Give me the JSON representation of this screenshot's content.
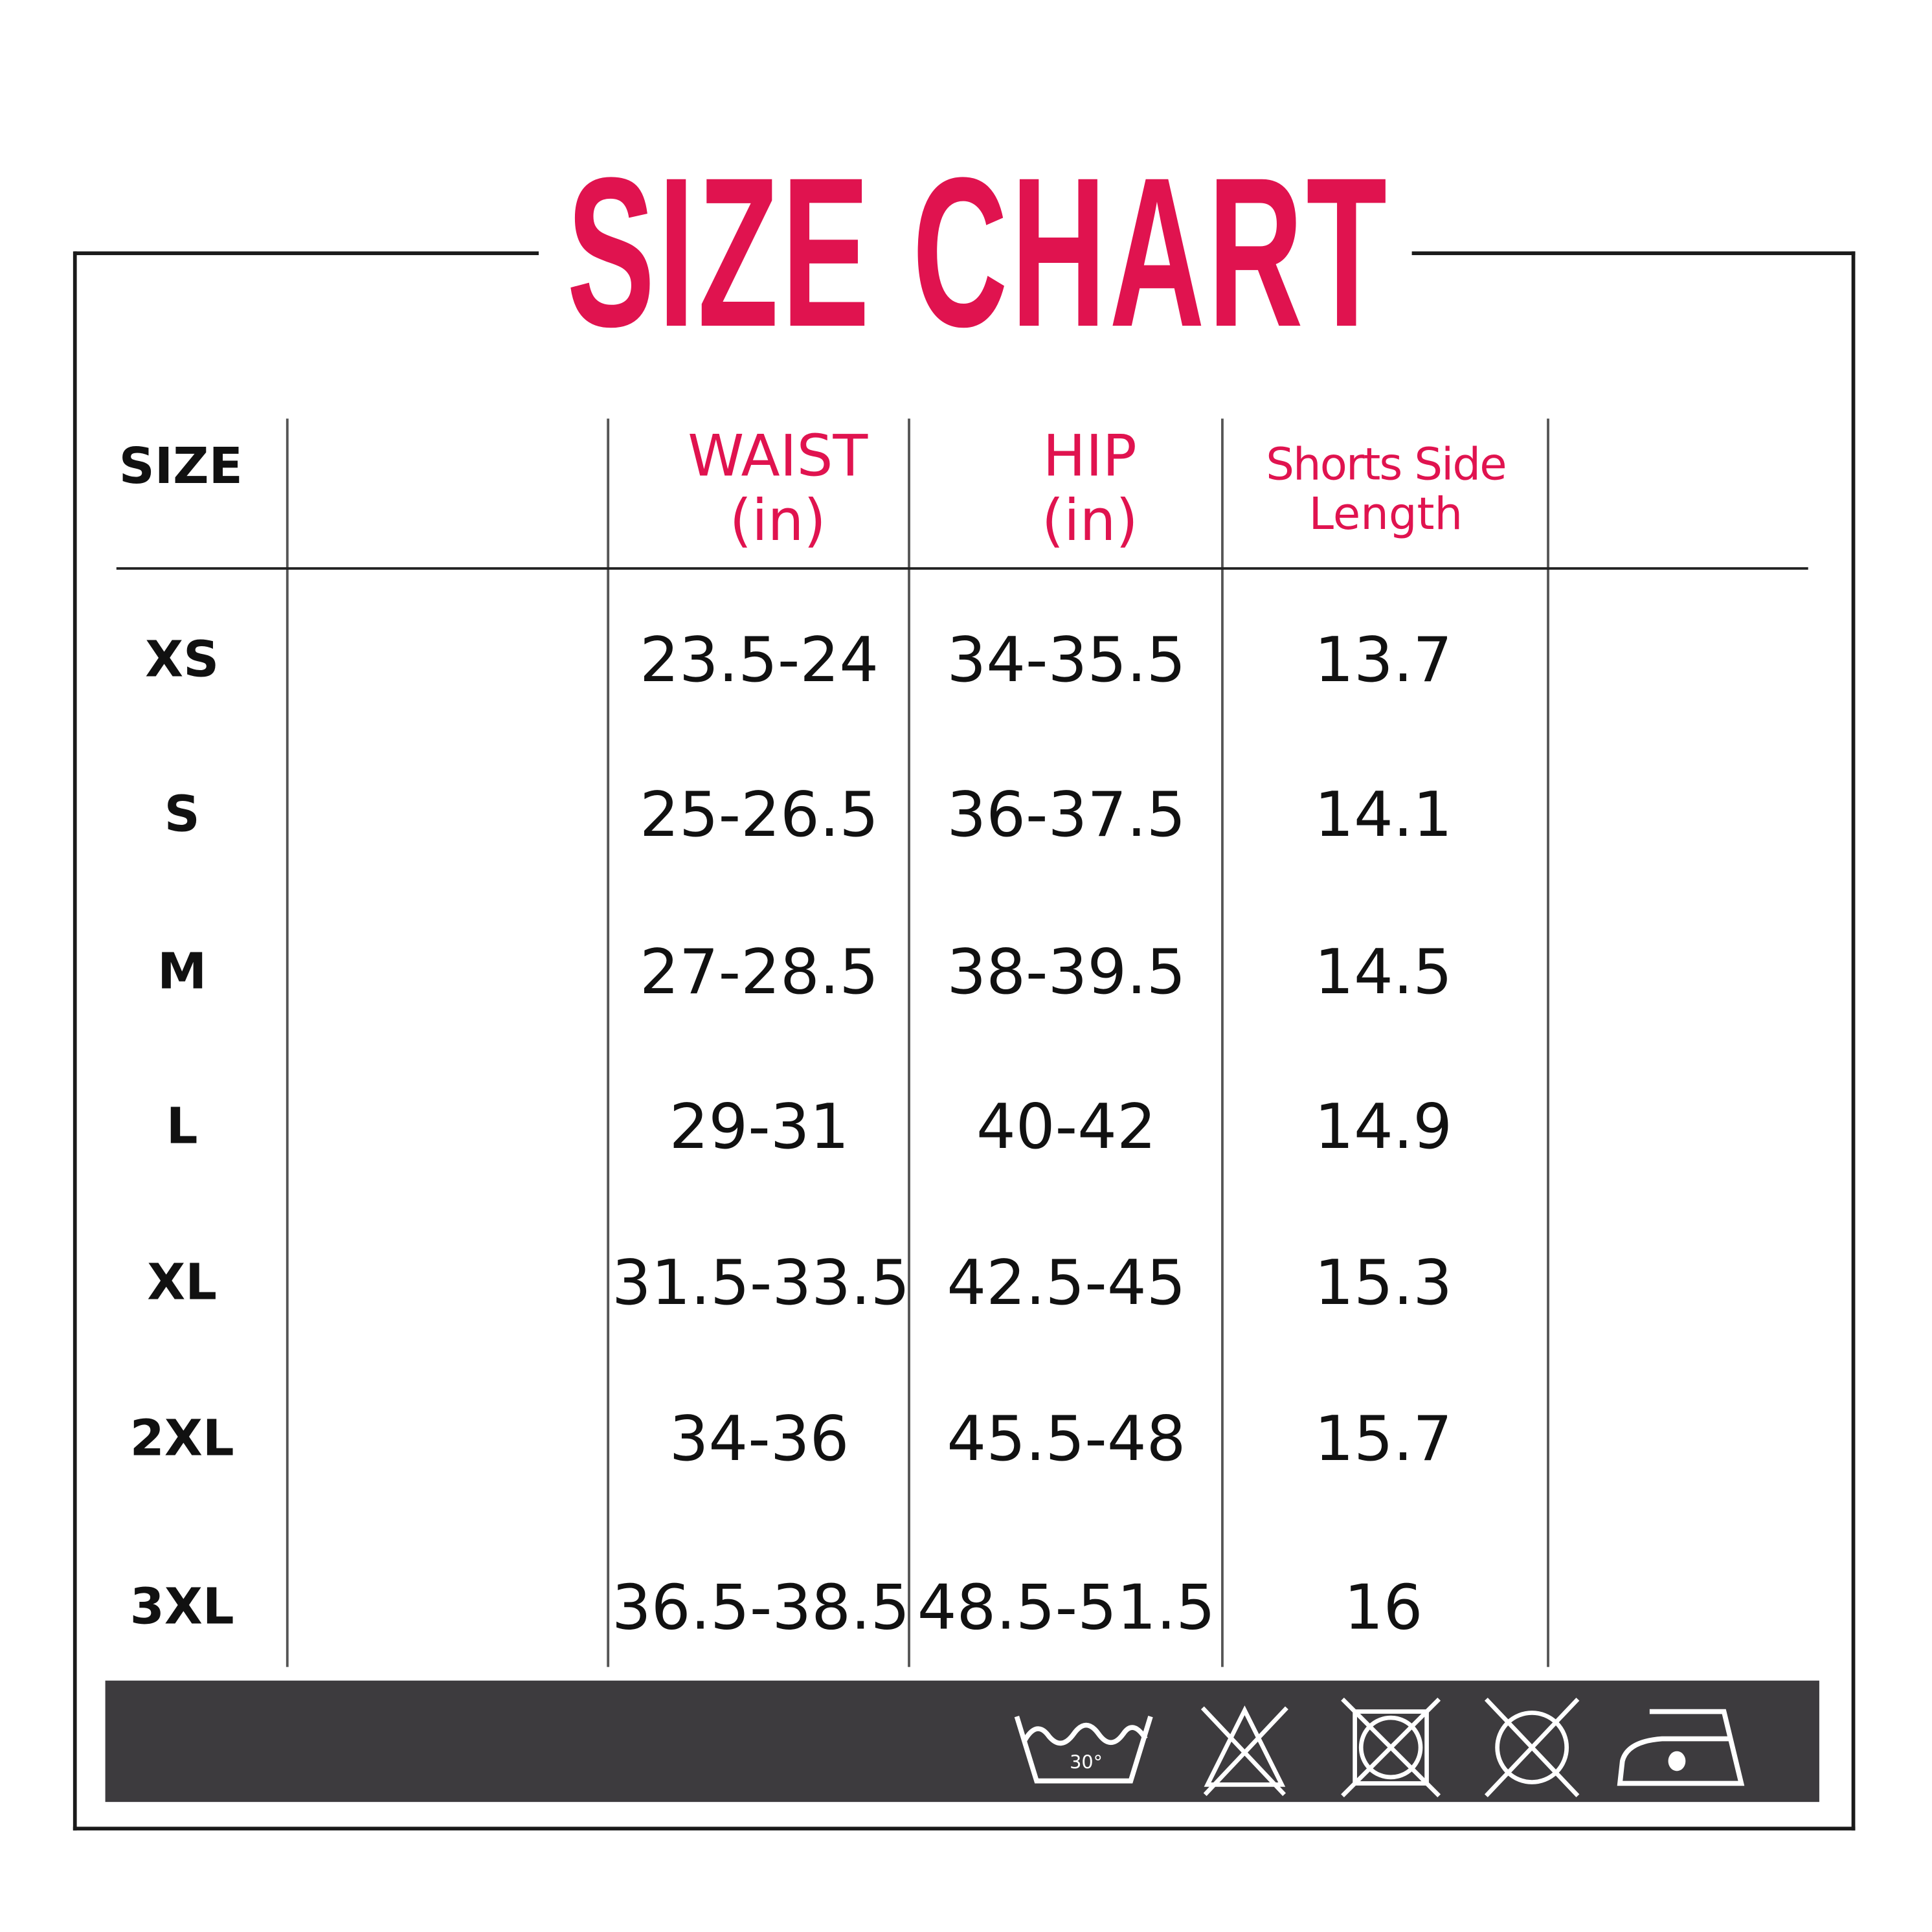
{
  "title": "SIZE CHART",
  "colors": {
    "accent": "#e0134f",
    "text": "#111111",
    "band": "#3d3b3e"
  },
  "table": {
    "headers": {
      "size": "SIZE",
      "waist": [
        "WAIST",
        "(in)"
      ],
      "hip": [
        "HIP",
        "(in)"
      ],
      "shorts_side_length": [
        "Shorts Side",
        "Length"
      ]
    },
    "rows": [
      {
        "size": "XS",
        "waist": "23.5-24",
        "hip": "34-35.5",
        "length": "13.7"
      },
      {
        "size": "S",
        "waist": "25-26.5",
        "hip": "36-37.5",
        "length": "14.1"
      },
      {
        "size": "M",
        "waist": "27-28.5",
        "hip": "38-39.5",
        "length": "14.5"
      },
      {
        "size": "L",
        "waist": "29-31",
        "hip": "40-42",
        "length": "14.9"
      },
      {
        "size": "XL",
        "waist": "31.5-33.5",
        "hip": "42.5-45",
        "length": "15.3"
      },
      {
        "size": "2XL",
        "waist": "34-36",
        "hip": "45.5-48",
        "length": "15.7"
      },
      {
        "size": "3XL",
        "waist": "36.5-38.5",
        "hip": "48.5-51.5",
        "length": "16"
      }
    ]
  },
  "care_icons": [
    {
      "name": "wash-30-icon",
      "label": "30°"
    },
    {
      "name": "do-not-bleach-icon"
    },
    {
      "name": "do-not-tumble-dry-icon"
    },
    {
      "name": "do-not-dry-clean-icon"
    },
    {
      "name": "iron-low-icon"
    }
  ]
}
